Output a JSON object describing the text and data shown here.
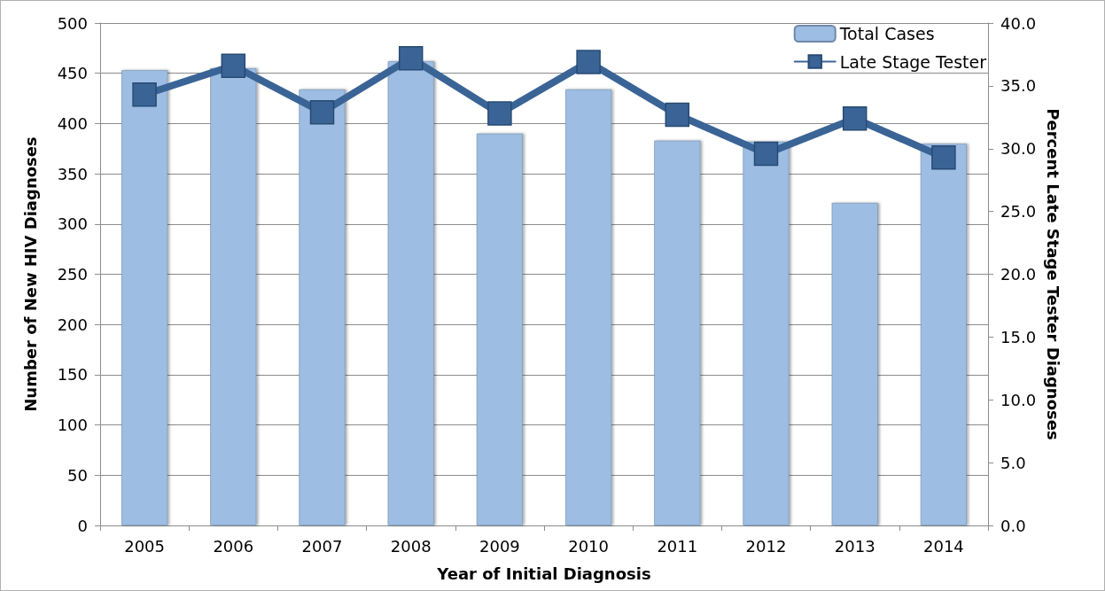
{
  "chart_data": {
    "type": "bar",
    "categories": [
      "2005",
      "2006",
      "2007",
      "2008",
      "2009",
      "2010",
      "2011",
      "2012",
      "2013",
      "2014"
    ],
    "series": [
      {
        "name": "Total Cases",
        "type": "bar",
        "color": "#9dbde3",
        "values": [
          453,
          455,
          434,
          462,
          390,
          434,
          383,
          382,
          321,
          380
        ]
      },
      {
        "name": "Late Stage Tester",
        "type": "line",
        "axis": "y2",
        "color": "#3b6496",
        "values": [
          34.3,
          36.6,
          32.9,
          37.2,
          32.8,
          36.9,
          32.7,
          29.6,
          32.4,
          29.3
        ]
      }
    ],
    "xlabel": "Year of Initial Diagnosis",
    "ylabel": "Number of New HIV Diagnoses",
    "y2label": "Percent Late Stage Tester Diagnoses",
    "ylim": [
      0,
      500
    ],
    "yticks": [
      0,
      50,
      100,
      150,
      200,
      250,
      300,
      350,
      400,
      450,
      500
    ],
    "y2lim": [
      0,
      40
    ],
    "y2ticks": [
      {
        "value": 0,
        "label": "0.0"
      },
      {
        "value": 5,
        "label": "5.0"
      },
      {
        "value": 10,
        "label": "10.0"
      },
      {
        "value": 15,
        "label": "15.0"
      },
      {
        "value": 20,
        "label": "20.0"
      },
      {
        "value": 25,
        "label": "25.0"
      },
      {
        "value": 30,
        "label": "30.0"
      },
      {
        "value": 35,
        "label": "35.0"
      },
      {
        "value": 40,
        "label": "40.0"
      }
    ],
    "grid": "y",
    "legend": "top right",
    "marker": "square",
    "line_style": "solid"
  }
}
